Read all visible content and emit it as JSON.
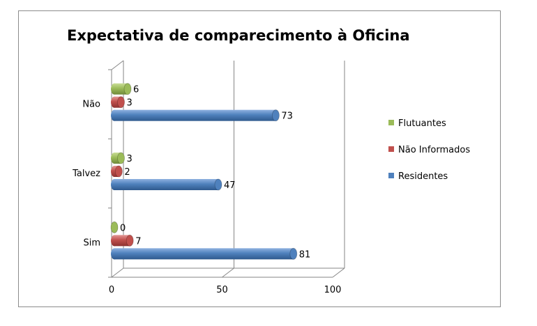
{
  "chart_data": {
    "type": "bar",
    "orientation": "horizontal",
    "style": "3d-cylinder",
    "title": "Expectativa de comparecimento à Oficina",
    "categories": [
      "Não",
      "Talvez",
      "Sim"
    ],
    "series": [
      {
        "name": "Flutuantes",
        "values": [
          6,
          3,
          0
        ],
        "color": "#9bbb59"
      },
      {
        "name": "Não Informados",
        "values": [
          3,
          2,
          7
        ],
        "color": "#c0504d"
      },
      {
        "name": "Residentes",
        "values": [
          73,
          47,
          81
        ],
        "color": "#4f81bd"
      }
    ],
    "xlim": [
      0,
      100
    ],
    "xticks": [
      "0",
      "50",
      "100"
    ],
    "gridlines": true,
    "legend_position": "right"
  }
}
